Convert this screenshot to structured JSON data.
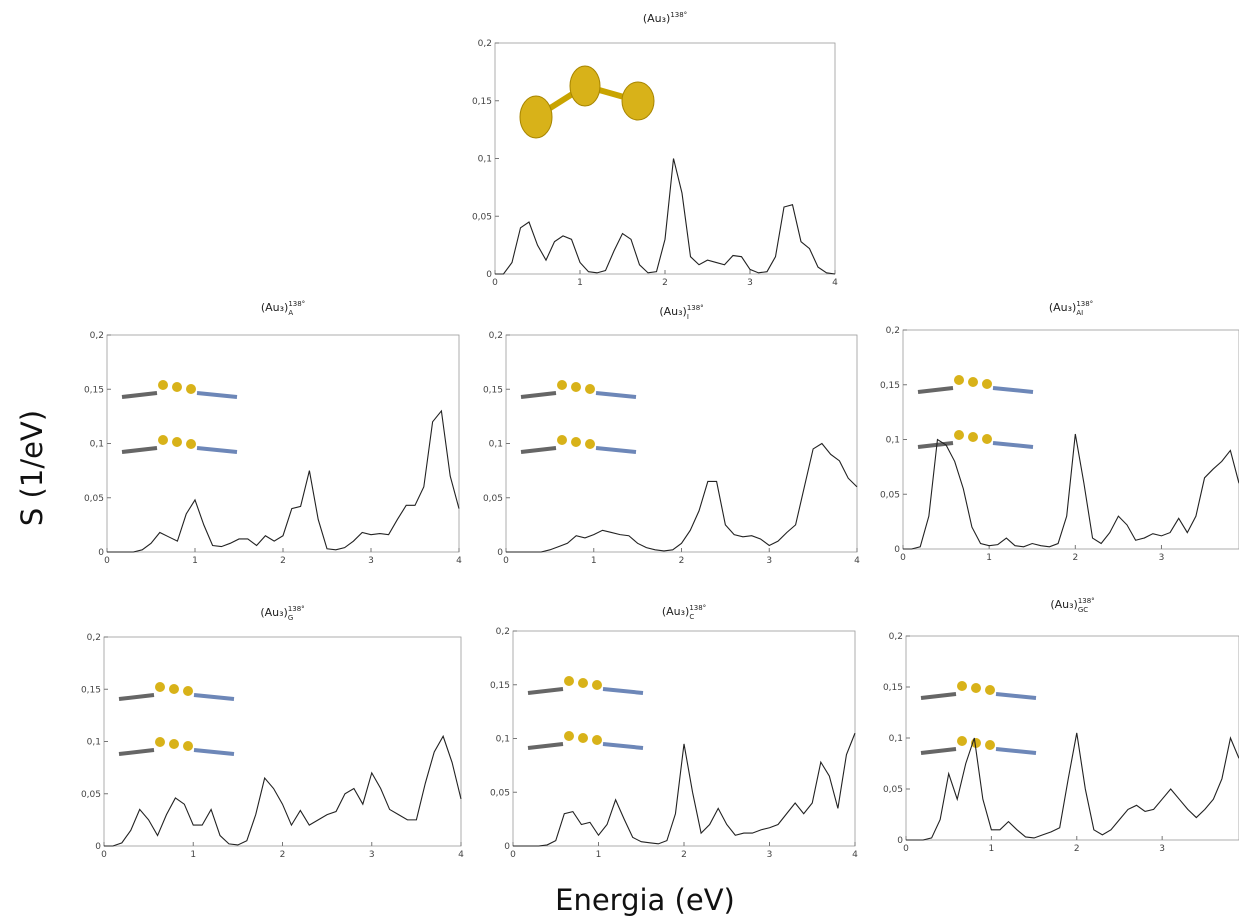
{
  "ylabel": "S (1/eV)",
  "xlabel": "Energia (eV)",
  "chart_data": [
    {
      "type": "line",
      "title": "(Au₃)",
      "superscript": "138°",
      "color": "#222222",
      "x": [
        0,
        0.1,
        0.2,
        0.3,
        0.4,
        0.5,
        0.6,
        0.7,
        0.8,
        0.9,
        1,
        1.1,
        1.2,
        1.3,
        1.4,
        1.5,
        1.6,
        1.7,
        1.8,
        1.9,
        2,
        2.1,
        2.2,
        2.3,
        2.4,
        2.5,
        2.6,
        2.7,
        2.8,
        2.9,
        3,
        3.1,
        3.2,
        3.3,
        3.4,
        3.5,
        3.6,
        3.7,
        3.8,
        3.9,
        4
      ],
      "values": [
        0,
        0,
        0.01,
        0.04,
        0.045,
        0.025,
        0.012,
        0.028,
        0.033,
        0.03,
        0.01,
        0.002,
        0.001,
        0.003,
        0.02,
        0.035,
        0.03,
        0.008,
        0.001,
        0.002,
        0.03,
        0.1,
        0.07,
        0.015,
        0.008,
        0.012,
        0.01,
        0.008,
        0.016,
        0.015,
        0.004,
        0.001,
        0.002,
        0.015,
        0.058,
        0.06,
        0.028,
        0.022,
        0.006,
        0.001,
        0
      ],
      "xlim": [
        0,
        4
      ],
      "xticks": [
        0,
        1,
        2,
        3,
        4
      ],
      "ylim": [
        0,
        0.2
      ],
      "yticks": [
        0,
        {
          "value": 0.05,
          "label": "0,05"
        },
        {
          "value": 0.1,
          "label": "0,1"
        },
        {
          "value": 0.15,
          "label": "0,15"
        },
        {
          "value": 0.2,
          "label": "0,2"
        }
      ]
    },
    {
      "type": "line",
      "title": "(Au₃)",
      "superscript": "138°",
      "subscript": "A",
      "color": "#222222",
      "x": [
        0,
        0.1,
        0.2,
        0.3,
        0.4,
        0.5,
        0.6,
        0.7,
        0.8,
        0.9,
        1,
        1.1,
        1.2,
        1.3,
        1.4,
        1.5,
        1.6,
        1.7,
        1.8,
        1.9,
        2,
        2.1,
        2.2,
        2.3,
        2.4,
        2.5,
        2.6,
        2.7,
        2.8,
        2.9,
        3,
        3.1,
        3.2,
        3.3,
        3.4,
        3.5,
        3.6,
        3.7,
        3.8,
        3.9,
        4
      ],
      "values": [
        0,
        0,
        0,
        0,
        0.002,
        0.008,
        0.018,
        0.014,
        0.01,
        0.035,
        0.048,
        0.025,
        0.006,
        0.005,
        0.008,
        0.012,
        0.012,
        0.006,
        0.015,
        0.01,
        0.015,
        0.04,
        0.042,
        0.075,
        0.03,
        0.003,
        0.002,
        0.004,
        0.01,
        0.018,
        0.016,
        0.017,
        0.016,
        0.03,
        0.043,
        0.043,
        0.06,
        0.12,
        0.13,
        0.07,
        0.04
      ],
      "xlim": [
        0,
        4
      ],
      "xticks": [
        0,
        1,
        2,
        3,
        4
      ],
      "ylim": [
        0,
        0.2
      ],
      "yticks": [
        0,
        {
          "value": 0.05,
          "label": "0,05"
        },
        {
          "value": 0.1,
          "label": "0,1"
        },
        {
          "value": 0.15,
          "label": "0,15"
        },
        {
          "value": 0.2,
          "label": "0,2"
        }
      ]
    },
    {
      "type": "line",
      "title": "(Au₃)",
      "superscript": "138°",
      "subscript": "I",
      "color": "#222222",
      "x": [
        0,
        0.1,
        0.2,
        0.3,
        0.4,
        0.5,
        0.6,
        0.7,
        0.8,
        0.9,
        1,
        1.1,
        1.2,
        1.3,
        1.4,
        1.5,
        1.6,
        1.7,
        1.8,
        1.9,
        2,
        2.1,
        2.2,
        2.3,
        2.4,
        2.5,
        2.6,
        2.7,
        2.8,
        2.9,
        3,
        3.1,
        3.2,
        3.3,
        3.4,
        3.5,
        3.6,
        3.7,
        3.8,
        3.9,
        4
      ],
      "values": [
        0,
        0,
        0,
        0,
        0,
        0.002,
        0.005,
        0.008,
        0.015,
        0.013,
        0.016,
        0.02,
        0.018,
        0.016,
        0.015,
        0.008,
        0.004,
        0.002,
        0.001,
        0.002,
        0.008,
        0.02,
        0.038,
        0.065,
        0.065,
        0.025,
        0.016,
        0.014,
        0.015,
        0.012,
        0.006,
        0.01,
        0.018,
        0.025,
        0.06,
        0.095,
        0.1,
        0.09,
        0.084,
        0.068,
        0.06
      ],
      "xlim": [
        0,
        4
      ],
      "xticks": [
        0,
        1,
        2,
        3,
        4
      ],
      "ylim": [
        0,
        0.2
      ],
      "yticks": [
        0,
        {
          "value": 0.05,
          "label": "0,05"
        },
        {
          "value": 0.1,
          "label": "0,1"
        },
        {
          "value": 0.15,
          "label": "0,15"
        },
        {
          "value": 0.2,
          "label": "0,2"
        }
      ]
    },
    {
      "type": "line",
      "title": "(Au₃)",
      "superscript": "138°",
      "subscript": "AI",
      "color": "#222222",
      "x": [
        0,
        0.1,
        0.2,
        0.3,
        0.4,
        0.5,
        0.6,
        0.7,
        0.8,
        0.9,
        1,
        1.1,
        1.2,
        1.3,
        1.4,
        1.5,
        1.6,
        1.7,
        1.8,
        1.9,
        2,
        2.1,
        2.2,
        2.3,
        2.4,
        2.5,
        2.6,
        2.7,
        2.8,
        2.9,
        3,
        3.1,
        3.2,
        3.3,
        3.4,
        3.5,
        3.6,
        3.7,
        3.8,
        3.9
      ],
      "values": [
        0,
        0,
        0.002,
        0.03,
        0.1,
        0.095,
        0.08,
        0.055,
        0.02,
        0.005,
        0.003,
        0.004,
        0.01,
        0.003,
        0.002,
        0.005,
        0.003,
        0.002,
        0.005,
        0.03,
        0.105,
        0.06,
        0.01,
        0.005,
        0.015,
        0.03,
        0.022,
        0.008,
        0.01,
        0.014,
        0.012,
        0.015,
        0.028,
        0.015,
        0.03,
        0.065,
        0.073,
        0.08,
        0.09,
        0.06
      ],
      "xlim": [
        0,
        3.9
      ],
      "xticks": [
        0,
        1,
        2,
        3
      ],
      "ylim": [
        0,
        0.2
      ],
      "yticks": [
        0,
        {
          "value": 0.05,
          "label": "0,05"
        },
        {
          "value": 0.1,
          "label": "0,1"
        },
        {
          "value": 0.15,
          "label": "0,15"
        },
        {
          "value": 0.2,
          "label": "0,2"
        }
      ]
    },
    {
      "type": "line",
      "title": "(Au₃)",
      "superscript": "138°",
      "subscript": "G",
      "color": "#222222",
      "x": [
        0,
        0.1,
        0.2,
        0.3,
        0.4,
        0.5,
        0.6,
        0.7,
        0.8,
        0.9,
        1,
        1.1,
        1.2,
        1.3,
        1.4,
        1.5,
        1.6,
        1.7,
        1.8,
        1.9,
        2,
        2.1,
        2.2,
        2.3,
        2.4,
        2.5,
        2.6,
        2.7,
        2.8,
        2.9,
        3,
        3.1,
        3.2,
        3.3,
        3.4,
        3.5,
        3.6,
        3.7,
        3.8,
        3.9,
        4
      ],
      "values": [
        0,
        0,
        0.003,
        0.015,
        0.035,
        0.025,
        0.01,
        0.03,
        0.046,
        0.04,
        0.02,
        0.02,
        0.035,
        0.01,
        0.002,
        0.001,
        0.005,
        0.03,
        0.065,
        0.055,
        0.04,
        0.02,
        0.034,
        0.02,
        0.025,
        0.03,
        0.033,
        0.05,
        0.055,
        0.04,
        0.07,
        0.055,
        0.035,
        0.03,
        0.025,
        0.025,
        0.06,
        0.09,
        0.105,
        0.08,
        0.045
      ],
      "xlim": [
        0,
        4
      ],
      "xticks": [
        0,
        1,
        2,
        3,
        4
      ],
      "ylim": [
        0,
        0.2
      ],
      "yticks": [
        0,
        {
          "value": 0.05,
          "label": "0,05"
        },
        {
          "value": 0.1,
          "label": "0,1"
        },
        {
          "value": 0.15,
          "label": "0,15"
        },
        {
          "value": 0.2,
          "label": "0,2"
        }
      ]
    },
    {
      "type": "line",
      "title": "(Au₃)",
      "superscript": "138°",
      "subscript": "C",
      "color": "#222222",
      "x": [
        0,
        0.1,
        0.2,
        0.3,
        0.4,
        0.5,
        0.6,
        0.7,
        0.8,
        0.9,
        1,
        1.1,
        1.2,
        1.3,
        1.4,
        1.5,
        1.6,
        1.7,
        1.8,
        1.9,
        2,
        2.1,
        2.2,
        2.3,
        2.4,
        2.5,
        2.6,
        2.7,
        2.8,
        2.9,
        3,
        3.1,
        3.2,
        3.3,
        3.4,
        3.5,
        3.6,
        3.7,
        3.8,
        3.9,
        4
      ],
      "values": [
        0,
        0,
        0,
        0,
        0.001,
        0.005,
        0.03,
        0.032,
        0.02,
        0.022,
        0.01,
        0.02,
        0.043,
        0.025,
        0.008,
        0.004,
        0.003,
        0.002,
        0.005,
        0.03,
        0.095,
        0.05,
        0.012,
        0.02,
        0.035,
        0.02,
        0.01,
        0.012,
        0.012,
        0.015,
        0.017,
        0.02,
        0.03,
        0.04,
        0.03,
        0.04,
        0.078,
        0.065,
        0.035,
        0.085,
        0.105
      ],
      "xlim": [
        0,
        4
      ],
      "xticks": [
        0,
        1,
        2,
        3,
        4
      ],
      "ylim": [
        0,
        0.2
      ],
      "yticks": [
        0,
        {
          "value": 0.05,
          "label": "0,05"
        },
        {
          "value": 0.1,
          "label": "0,1"
        },
        {
          "value": 0.15,
          "label": "0,15"
        },
        {
          "value": 0.2,
          "label": "0,2"
        }
      ]
    },
    {
      "type": "line",
      "title": "(Au₃)",
      "superscript": "138°",
      "subscript": "GC",
      "color": "#222222",
      "x": [
        0,
        0.1,
        0.2,
        0.3,
        0.4,
        0.5,
        0.6,
        0.7,
        0.8,
        0.9,
        1,
        1.1,
        1.2,
        1.3,
        1.4,
        1.5,
        1.6,
        1.7,
        1.8,
        1.9,
        2,
        2.1,
        2.2,
        2.3,
        2.4,
        2.5,
        2.6,
        2.7,
        2.8,
        2.9,
        3,
        3.1,
        3.2,
        3.3,
        3.4,
        3.5,
        3.6,
        3.7,
        3.8,
        3.9
      ],
      "values": [
        0,
        0,
        0,
        0.002,
        0.02,
        0.065,
        0.04,
        0.075,
        0.1,
        0.04,
        0.01,
        0.01,
        0.018,
        0.01,
        0.003,
        0.002,
        0.005,
        0.008,
        0.012,
        0.06,
        0.105,
        0.05,
        0.01,
        0.005,
        0.01,
        0.02,
        0.03,
        0.034,
        0.028,
        0.03,
        0.04,
        0.05,
        0.04,
        0.03,
        0.022,
        0.03,
        0.04,
        0.06,
        0.1,
        0.08
      ],
      "xlim": [
        0,
        3.9
      ],
      "xticks": [
        0,
        1,
        2,
        3
      ],
      "ylim": [
        0,
        0.2
      ],
      "yticks": [
        0,
        {
          "value": 0.05,
          "label": "0,05"
        },
        {
          "value": 0.1,
          "label": "0,1"
        },
        {
          "value": 0.15,
          "label": "0,15"
        },
        {
          "value": 0.2,
          "label": "0,2"
        }
      ]
    }
  ]
}
